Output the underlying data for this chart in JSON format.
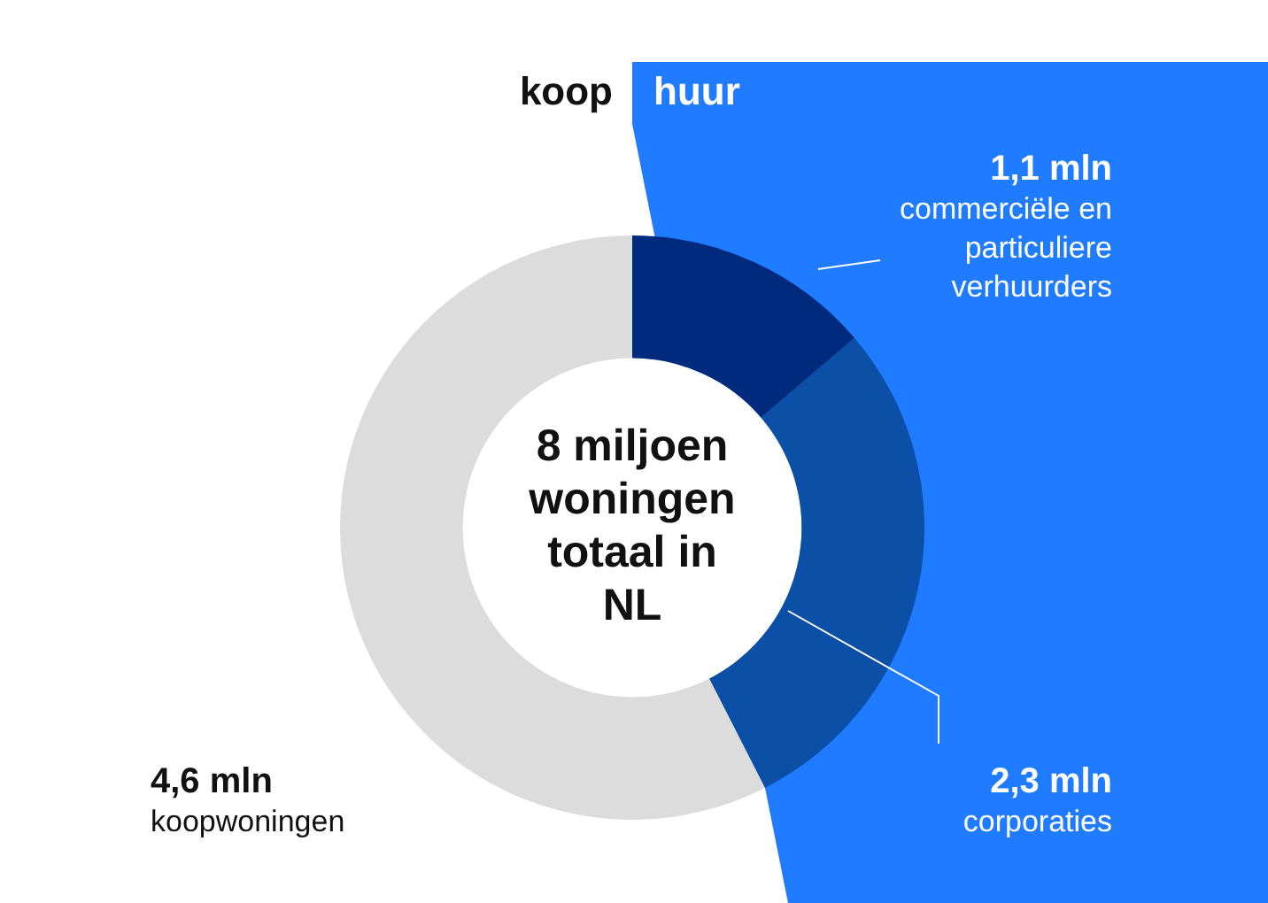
{
  "chart_data": {
    "type": "donut",
    "categories": [
      "commerciële en particuliere verhuurders",
      "corporaties",
      "koopwoningen"
    ],
    "values": [
      1.1,
      2.3,
      4.6
    ],
    "colors": [
      "#002b7d",
      "#0c4fa6",
      "#dcdcdc"
    ],
    "value_labels": [
      "1,1 mln",
      "2,3 mln",
      "4,6 mln"
    ],
    "annotations": [
      "koop",
      "huur",
      "8 miljoen woningen totaal in NL"
    ]
  }
}
